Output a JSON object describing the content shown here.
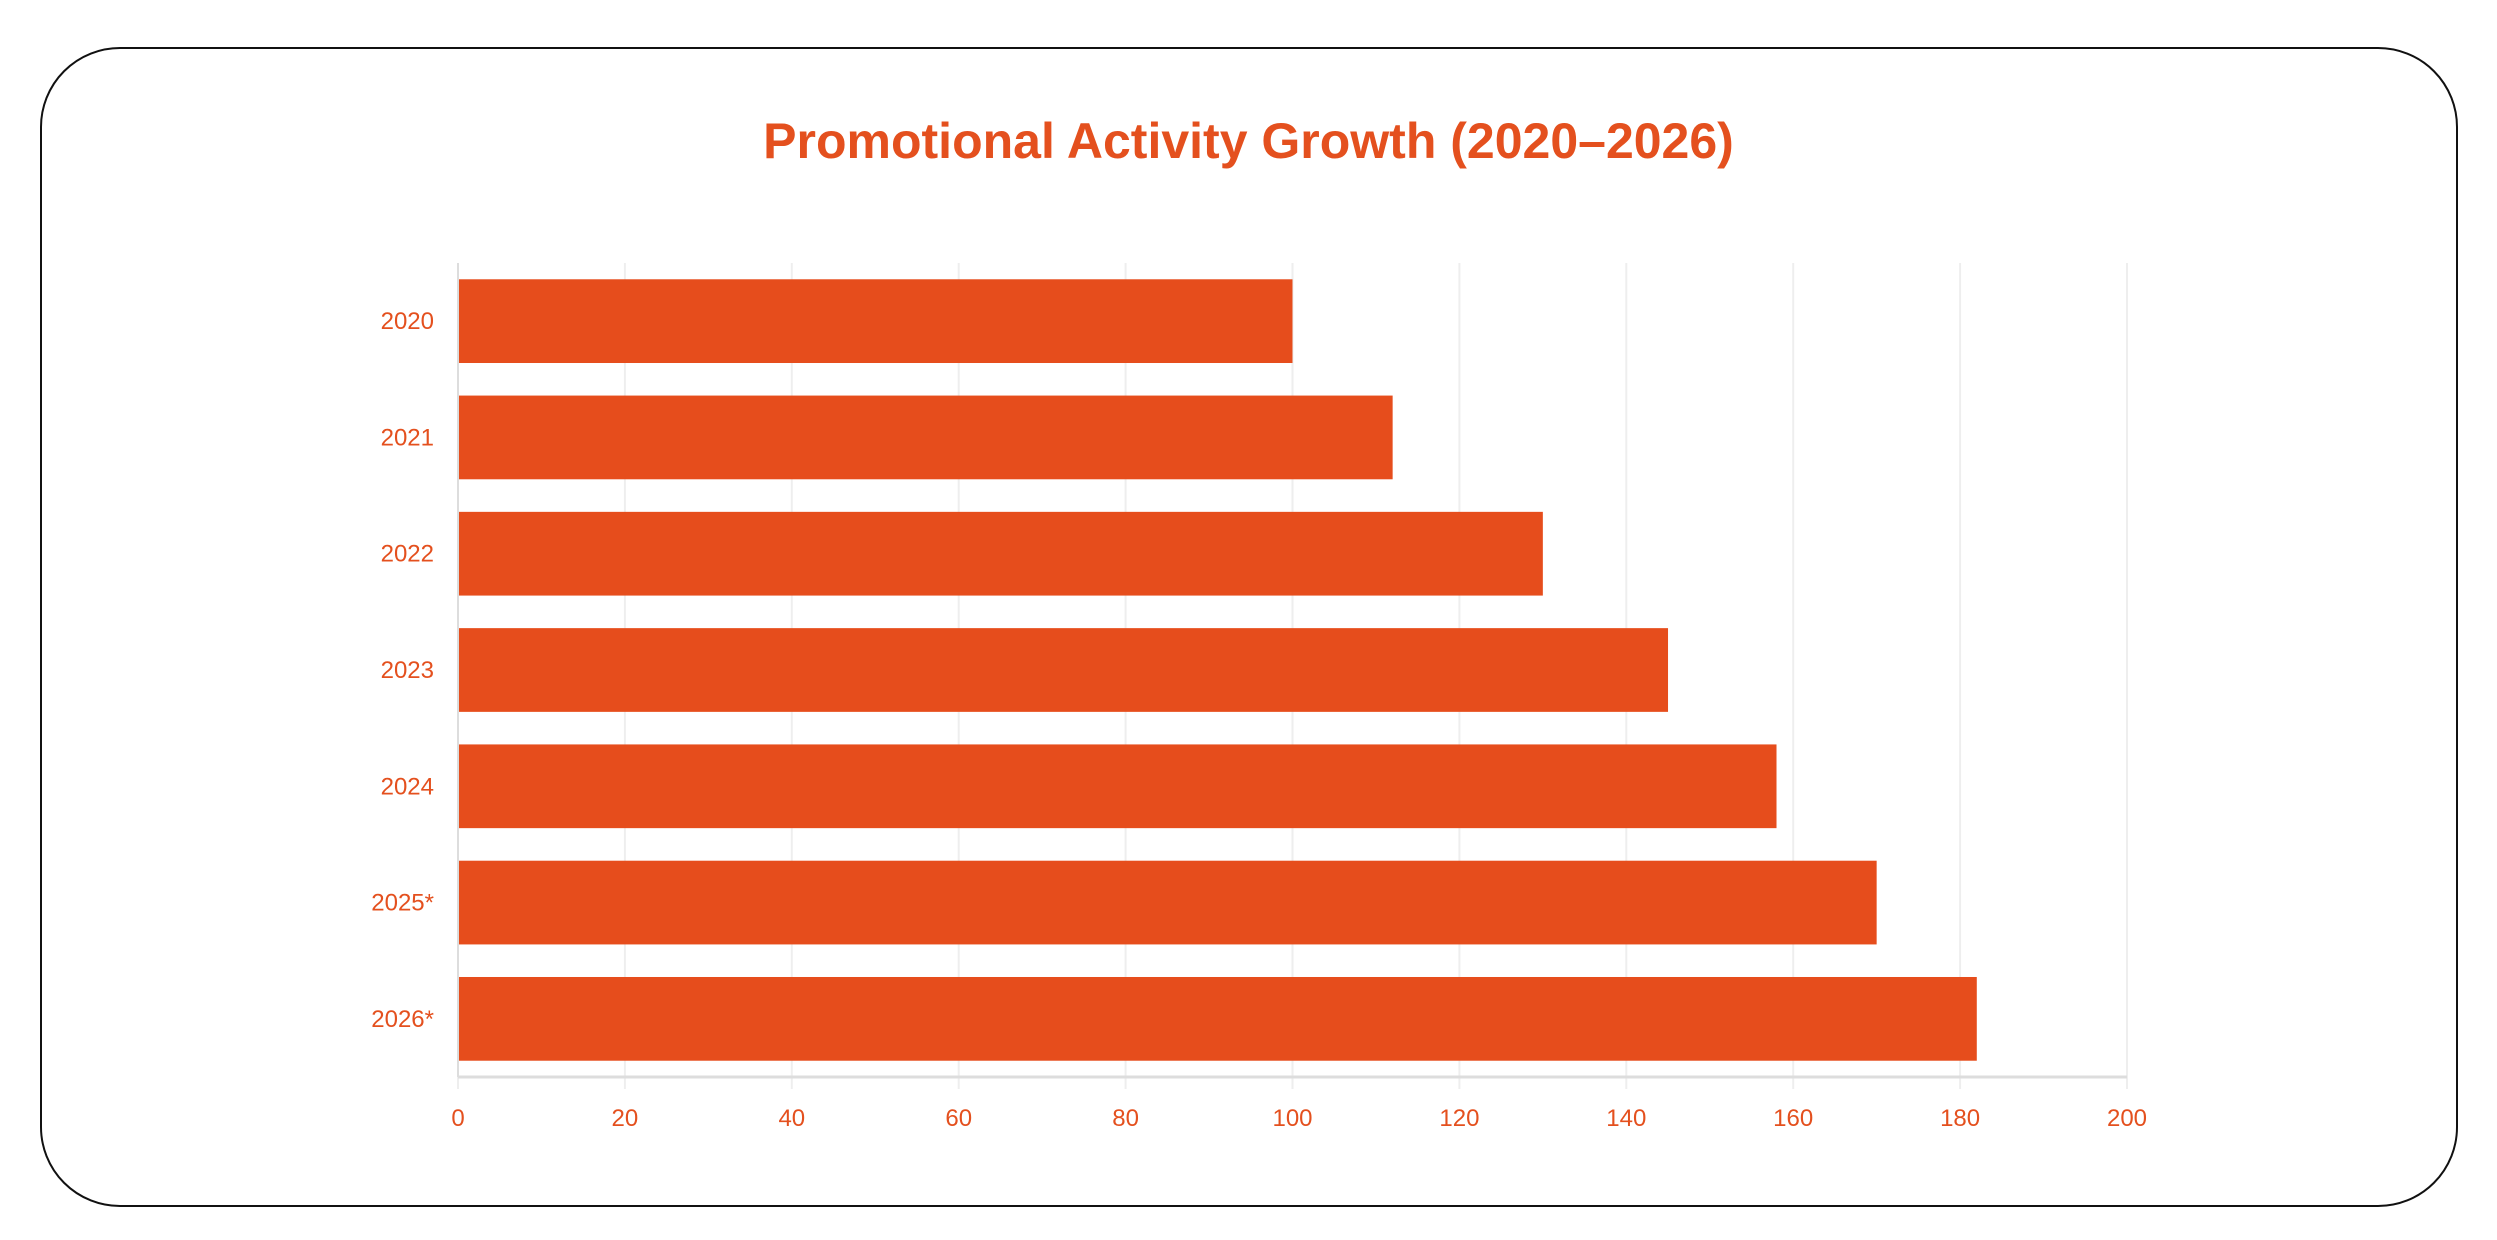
{
  "chart_data": {
    "type": "bar",
    "orientation": "horizontal",
    "title": "Promotional Activity Growth (2020–2026)",
    "categories": [
      "2020",
      "2021",
      "2022",
      "2023",
      "2024",
      "2025*",
      "2026*"
    ],
    "values": [
      100,
      112,
      130,
      145,
      158,
      170,
      182
    ],
    "xlim": [
      0,
      200
    ],
    "xticks": [
      0,
      20,
      40,
      60,
      80,
      100,
      120,
      140,
      160,
      180,
      200
    ],
    "xlabel": "",
    "ylabel": "",
    "grid": true,
    "legend": "none",
    "colors": {
      "bar": "#E64D1C",
      "text": "#E4501E",
      "grid": "#EEEEEE",
      "axis": "#DDDDDD"
    }
  }
}
